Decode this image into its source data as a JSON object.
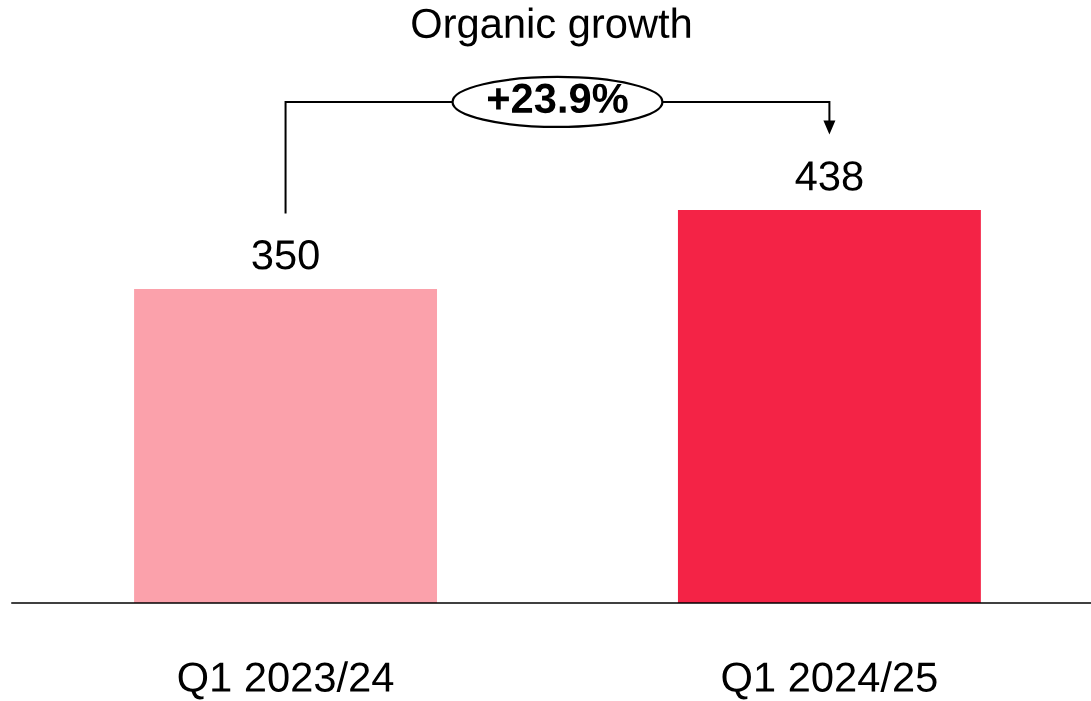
{
  "chart_data": {
    "type": "bar",
    "title": "Organic growth",
    "categories": [
      "Q1 2023/24",
      "Q1 2024/25"
    ],
    "values": [
      350,
      438
    ],
    "colors": [
      "#fba1ab",
      "#f42346"
    ],
    "data_labels": true,
    "annotations": [
      "+23.9%"
    ]
  }
}
